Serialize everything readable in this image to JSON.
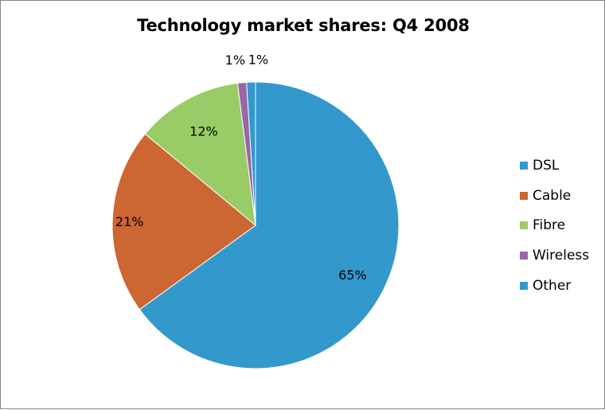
{
  "chart_data": {
    "type": "pie",
    "title": "Technology market shares: Q4 2008",
    "categories": [
      "DSL",
      "Cable",
      "Fibre",
      "Wireless",
      "Other"
    ],
    "values": [
      65,
      21,
      12,
      1,
      1
    ],
    "data_labels": [
      "65%",
      "21%",
      "12%",
      "1%",
      "1%"
    ],
    "colors": [
      "#3399cc",
      "#cc6633",
      "#99cc66",
      "#9966aa",
      "#3399cc"
    ],
    "legend_position": "right"
  }
}
